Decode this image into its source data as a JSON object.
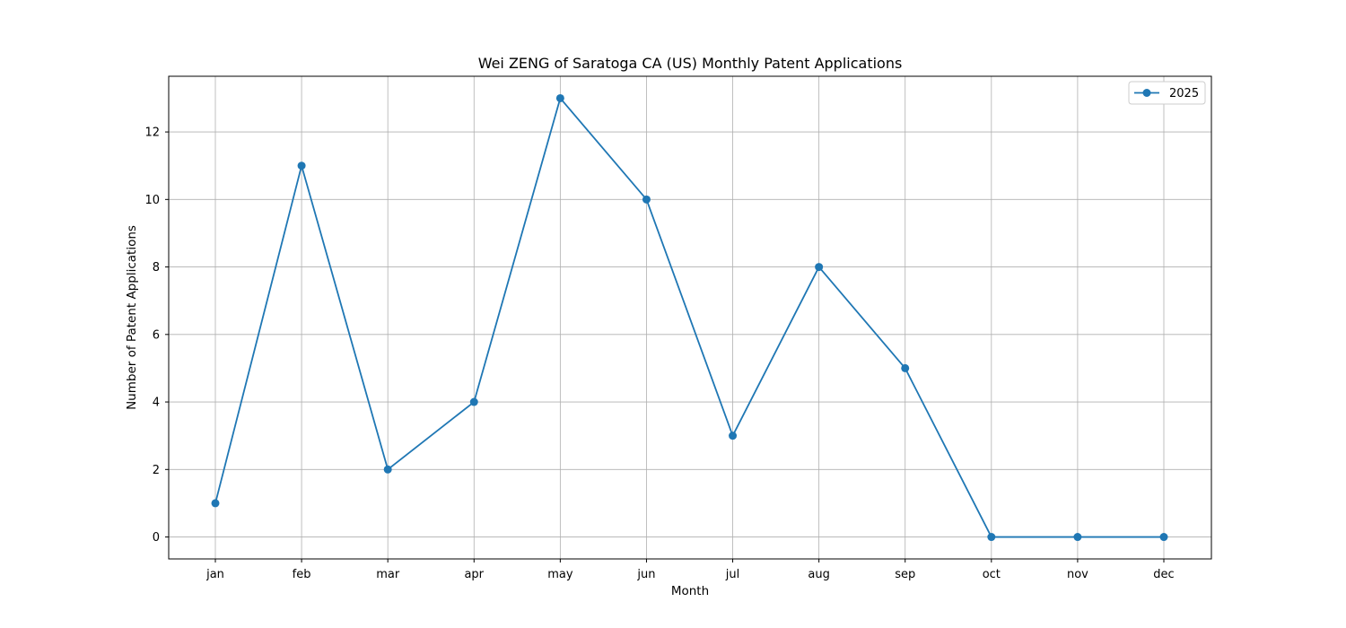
{
  "chart_data": {
    "type": "line",
    "title": "Wei ZENG of Saratoga CA (US) Monthly Patent Applications",
    "xlabel": "Month",
    "ylabel": "Number of Patent Applications",
    "categories": [
      "jan",
      "feb",
      "mar",
      "apr",
      "may",
      "jun",
      "jul",
      "aug",
      "sep",
      "oct",
      "nov",
      "dec"
    ],
    "series": [
      {
        "name": "2025",
        "values": [
          1,
          11,
          2,
          4,
          13,
          10,
          3,
          8,
          5,
          0,
          0,
          0
        ],
        "color": "#1f77b4",
        "marker": "circle"
      }
    ],
    "ylim": [
      -0.65,
      13.65
    ],
    "yticks": [
      0,
      2,
      4,
      6,
      8,
      10,
      12
    ],
    "grid": true,
    "legend_position": "top-right"
  }
}
